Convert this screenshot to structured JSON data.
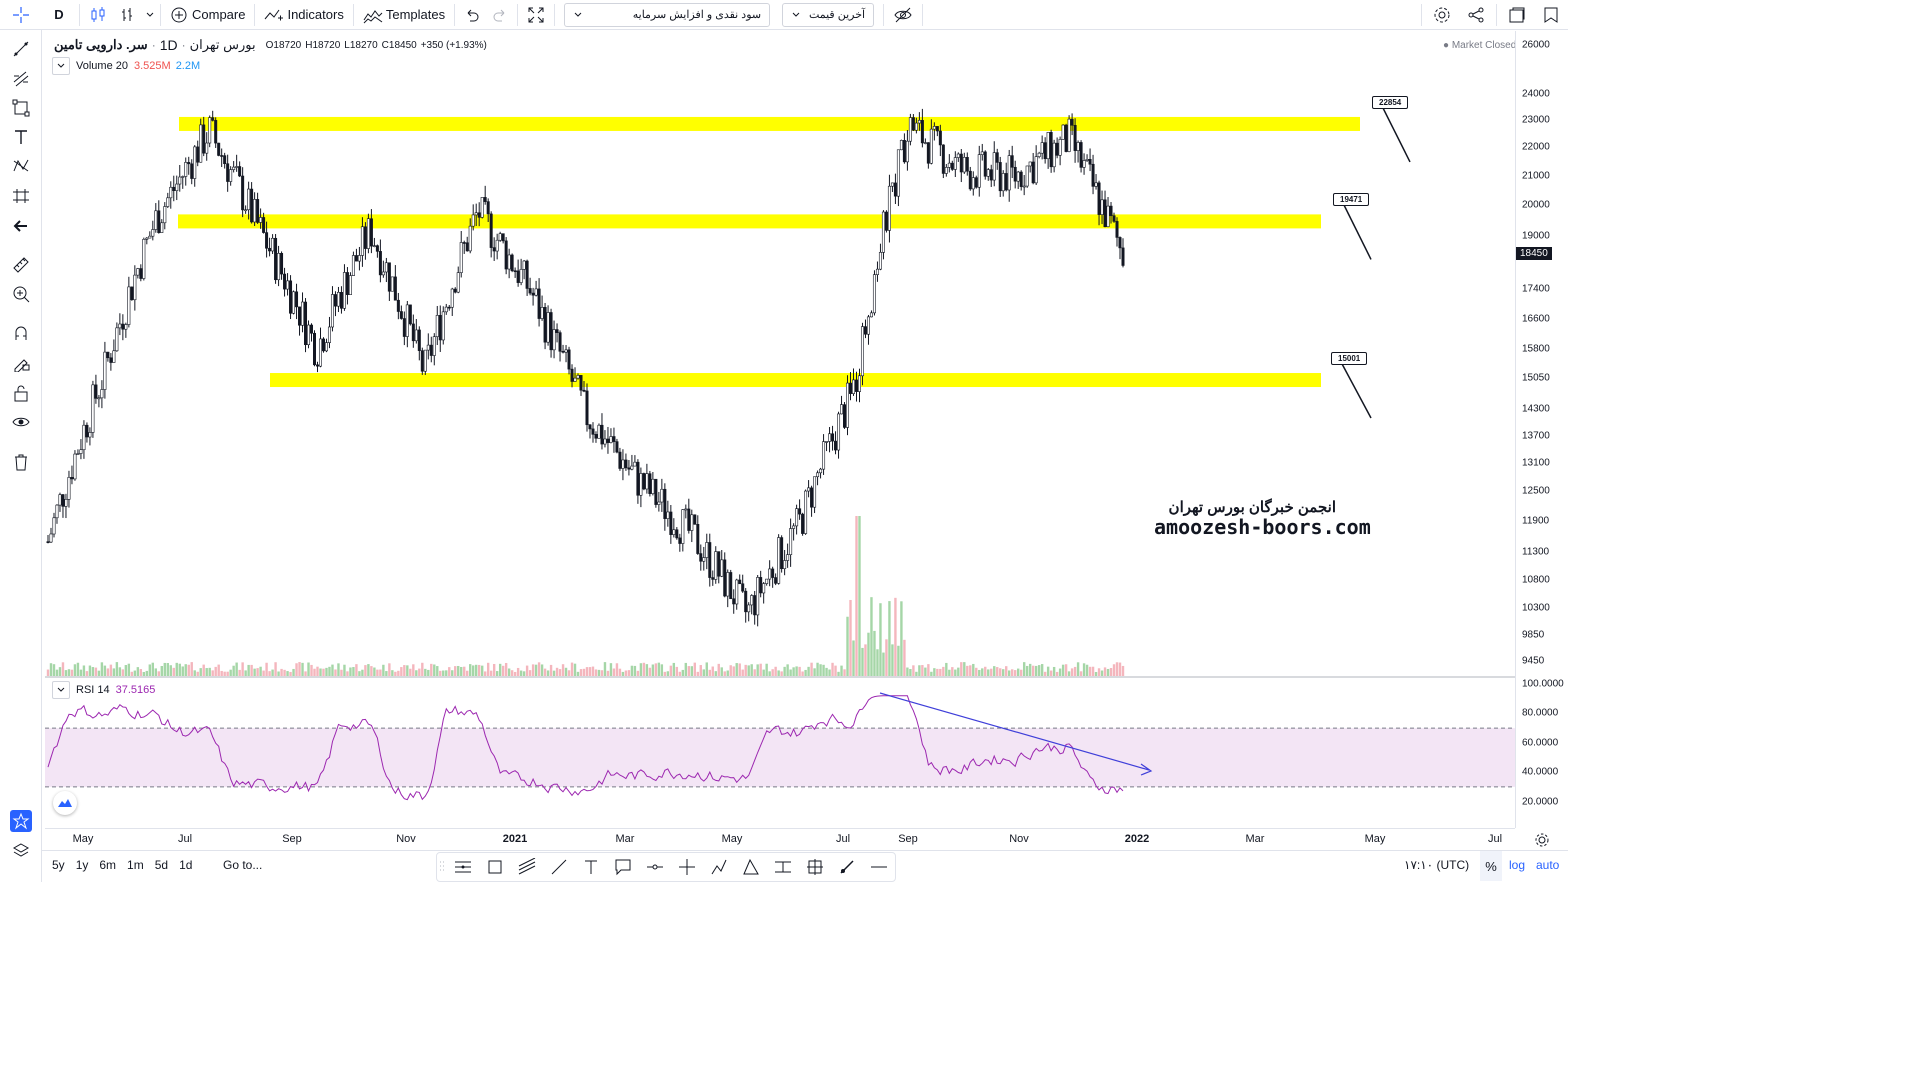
{
  "toolbar": {
    "interval": "D",
    "compare": "Compare",
    "indicators": "Indicators",
    "templates": "Templates",
    "study_select": "سود نقدی و افزایش سرمایه",
    "price_select": "آخرین قیمت"
  },
  "legend": {
    "symbol": "سر. دارویی تامین",
    "interval": "1D",
    "exchange": "بورس تهران",
    "o_label": "O",
    "o": "18720",
    "h_label": "H",
    "h": "18720",
    "l_label": "L",
    "l": "18270",
    "c_label": "C",
    "c": "18450",
    "change": "+350 (+1.93%)",
    "market_status": "Market Closed",
    "volume_label": "Volume 20",
    "volume_v1": "3.525M",
    "volume_v2": "2.2M",
    "rsi_label": "RSI 14",
    "rsi_value": "37.5165"
  },
  "watermark": {
    "line1": "انجمن خبرگان بورس تهران",
    "line2": "amoozesh-boors.com"
  },
  "levels": [
    {
      "price": "22854"
    },
    {
      "price": "19471"
    },
    {
      "price": "15001"
    }
  ],
  "price_axis": {
    "ticks": [
      "26000",
      "24000",
      "23000",
      "22000",
      "21000",
      "20000",
      "19000",
      "18450",
      "17400",
      "16600",
      "15800",
      "15050",
      "14300",
      "13700",
      "13100",
      "12500",
      "11900",
      "11300",
      "10800",
      "10300",
      "9850",
      "9450"
    ],
    "current": "18450"
  },
  "rsi_axis": {
    "ticks": [
      "100.0000",
      "80.0000",
      "60.0000",
      "40.0000",
      "20.0000"
    ]
  },
  "time_axis": {
    "ticks": [
      "May",
      "Jul",
      "Sep",
      "Nov",
      "2021",
      "Mar",
      "May",
      "Jul",
      "Sep",
      "Nov",
      "2022",
      "Mar",
      "May",
      "Jul"
    ]
  },
  "bottom": {
    "ranges": [
      "5y",
      "1y",
      "6m",
      "1m",
      "5d",
      "1d"
    ],
    "goto": "Go to...",
    "clock": "۱۷:۱۰ (UTC)",
    "pct": "%",
    "log": "log",
    "auto": "auto"
  },
  "colors": {
    "level_fill": "#ffff00",
    "rsi_line": "#9c27b0",
    "rsi_band": "#f3e5f5",
    "trend_line": "#3f3fd9",
    "vol_up": "#a5d6a7",
    "vol_down": "#f4b6bd",
    "accent": "#2962ff"
  },
  "chart_data": {
    "type": "candlestick",
    "price_levels": [
      22854,
      19471,
      15001
    ],
    "last_close": 18450,
    "rsi_last": 37.5165,
    "price_path": [
      [
        "2020-04",
        11500
      ],
      [
        "2020-05",
        15000
      ],
      [
        "2020-06",
        19500
      ],
      [
        "2020-07",
        22600
      ],
      [
        "2020-08",
        19000
      ],
      [
        "2020-09",
        15800
      ],
      [
        "2020-10",
        19200
      ],
      [
        "2020-11",
        15200
      ],
      [
        "2020-12",
        19800
      ],
      [
        "2021-01",
        17300
      ],
      [
        "2021-02",
        14200
      ],
      [
        "2021-03",
        12700
      ],
      [
        "2021-04",
        11600
      ],
      [
        "2021-05",
        10200
      ],
      [
        "2021-06",
        11900
      ],
      [
        "2021-07",
        14800
      ],
      [
        "2021-08",
        22800
      ],
      [
        "2021-09",
        21200
      ],
      [
        "2021-10",
        21000
      ],
      [
        "2021-11",
        22300
      ],
      [
        "2021-12",
        18450
      ]
    ]
  }
}
